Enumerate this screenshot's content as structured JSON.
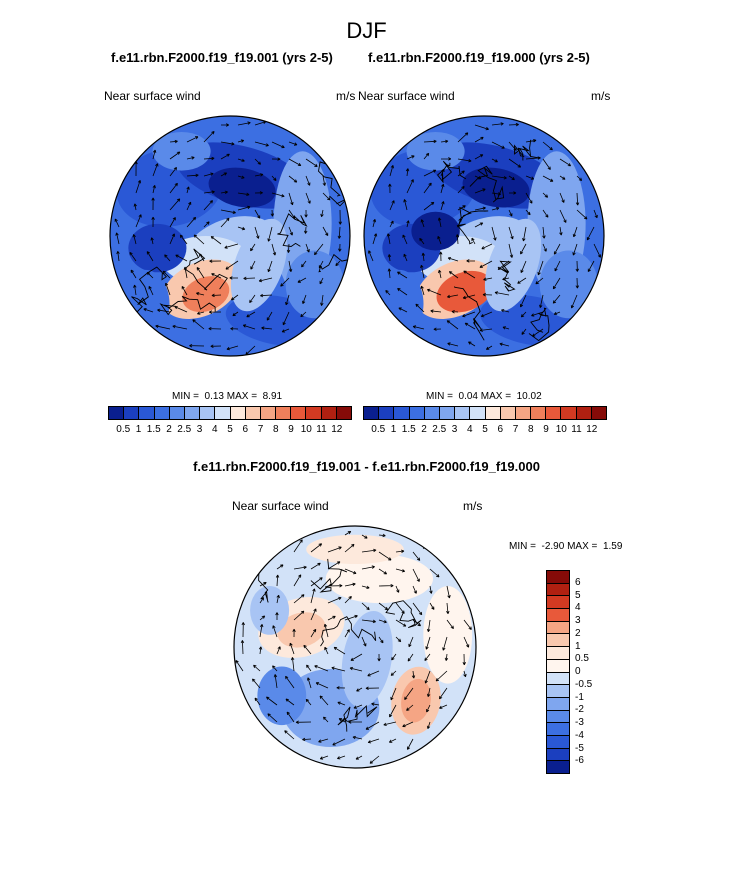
{
  "figure": {
    "title": "DJF",
    "case1_title": "f.e11.rbn.F2000.f19_f19.001 (yrs 2-5)",
    "case2_title": "f.e11.rbn.F2000.f19_f19.000 (yrs 2-5)",
    "diff_title": "f.e11.rbn.F2000.f19_f19.001 - f.e11.rbn.F2000.f19_f19.000"
  },
  "chart_data": [
    {
      "type": "heatmap",
      "projection": "polar-stereographic-north",
      "field": "Near surface wind",
      "units": "m/s",
      "min_label": "MIN =",
      "min_value": "0.13",
      "max_label": "MAX =",
      "max_value": "8.91",
      "levels": [
        "0.5",
        "1",
        "1.5",
        "2",
        "2.5",
        "3",
        "4",
        "5",
        "6",
        "7",
        "8",
        "9",
        "10",
        "11",
        "12"
      ],
      "colors": [
        "#0a1f8f",
        "#1b3fbf",
        "#2a58d6",
        "#3c6fe2",
        "#5a8ae9",
        "#7fa6ef",
        "#a8c4f4",
        "#d2e2f8",
        "#fde9dc",
        "#f9c8ae",
        "#f5a584",
        "#ef7f5b",
        "#e8593a",
        "#d23a22",
        "#b02011",
        "#850b08"
      ],
      "legend": "horizontal-bottom"
    },
    {
      "type": "heatmap",
      "projection": "polar-stereographic-north",
      "field": "Near surface wind",
      "units": "m/s",
      "min_label": "MIN =",
      "min_value": "0.04",
      "max_label": "MAX =",
      "max_value": "10.02",
      "levels": [
        "0.5",
        "1",
        "1.5",
        "2",
        "2.5",
        "3",
        "4",
        "5",
        "6",
        "7",
        "8",
        "9",
        "10",
        "11",
        "12"
      ],
      "colors": [
        "#0a1f8f",
        "#1b3fbf",
        "#2a58d6",
        "#3c6fe2",
        "#5a8ae9",
        "#7fa6ef",
        "#a8c4f4",
        "#d2e2f8",
        "#fde9dc",
        "#f9c8ae",
        "#f5a584",
        "#ef7f5b",
        "#e8593a",
        "#d23a22",
        "#b02011",
        "#850b08"
      ],
      "legend": "horizontal-bottom"
    },
    {
      "type": "heatmap",
      "projection": "polar-stereographic-north",
      "field": "Near surface wind",
      "units": "m/s",
      "min_label": "MIN =",
      "min_value": "-2.90",
      "max_label": "MAX =",
      "max_value": "1.59",
      "levels": [
        "6",
        "5",
        "4",
        "3",
        "2",
        "1",
        "0.5",
        "0",
        "-0.5",
        "-1",
        "-2",
        "-3",
        "-4",
        "-5",
        "-6"
      ],
      "colors": [
        "#850b08",
        "#b02011",
        "#d23a22",
        "#e8593a",
        "#f5a584",
        "#f9c8ae",
        "#fde9dc",
        "#fff5ee",
        "#d2e2f8",
        "#a8c4f4",
        "#7fa6ef",
        "#5a8ae9",
        "#3c6fe2",
        "#2a58d6",
        "#1b3fbf",
        "#0a1f8f"
      ],
      "legend": "vertical-right"
    }
  ]
}
